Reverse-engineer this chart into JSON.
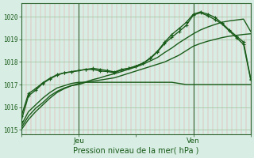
{
  "xlabel": "Pression niveau de la mer( hPa )",
  "bg_color": "#d8ede4",
  "fig_color": "#d8ede4",
  "grid_v_color": "#e8a0a0",
  "grid_h_color": "#a8c8a8",
  "line_color": "#1a5c1a",
  "ylim": [
    1014.8,
    1020.6
  ],
  "xlim": [
    0,
    96
  ],
  "xtick_labels": [
    "",
    "Jeu",
    "",
    "Ven",
    ""
  ],
  "xtick_positions": [
    0,
    24,
    48,
    72,
    96
  ],
  "ytick_positions": [
    1015,
    1016,
    1017,
    1018,
    1019,
    1020
  ],
  "vline_positions": [
    24,
    72
  ],
  "vline_color": "#336633",
  "series": [
    {
      "x": [
        0,
        3,
        6,
        9,
        12,
        15,
        18,
        21,
        24,
        27,
        30,
        33,
        36,
        39,
        42,
        45,
        48,
        51,
        54,
        57,
        60,
        63,
        66,
        69,
        72,
        75,
        78,
        81,
        84,
        87,
        90,
        93,
        96
      ],
      "y": [
        1015.2,
        1015.8,
        1016.1,
        1016.4,
        1016.65,
        1016.85,
        1016.95,
        1017.05,
        1017.1,
        1017.1,
        1017.1,
        1017.1,
        1017.1,
        1017.1,
        1017.1,
        1017.1,
        1017.1,
        1017.1,
        1017.1,
        1017.1,
        1017.1,
        1017.1,
        1017.05,
        1017.0,
        1017.0,
        1017.0,
        1017.0,
        1017.0,
        1017.0,
        1017.0,
        1017.0,
        1017.0,
        1017.0
      ],
      "marker": null,
      "linewidth": 1.0,
      "color": "#1a5c1a"
    },
    {
      "x": [
        0,
        3,
        6,
        9,
        12,
        15,
        18,
        21,
        24,
        27,
        30,
        33,
        36,
        39,
        42,
        45,
        48,
        51,
        54,
        57,
        60,
        63,
        66,
        69,
        72,
        75,
        78,
        81,
        84,
        87,
        90,
        93,
        96
      ],
      "y": [
        1015.1,
        1015.6,
        1015.95,
        1016.2,
        1016.5,
        1016.7,
        1016.85,
        1016.95,
        1017.0,
        1017.1,
        1017.15,
        1017.2,
        1017.25,
        1017.3,
        1017.4,
        1017.5,
        1017.6,
        1017.7,
        1017.8,
        1017.9,
        1018.0,
        1018.15,
        1018.3,
        1018.5,
        1018.7,
        1018.82,
        1018.92,
        1019.0,
        1019.08,
        1019.14,
        1019.18,
        1019.22,
        1019.25
      ],
      "marker": null,
      "linewidth": 1.0,
      "color": "#1a5c1a"
    },
    {
      "x": [
        0,
        3,
        6,
        9,
        12,
        15,
        18,
        21,
        24,
        27,
        30,
        33,
        36,
        39,
        42,
        45,
        48,
        51,
        54,
        57,
        60,
        63,
        66,
        69,
        72,
        75,
        78,
        81,
        84,
        87,
        90,
        93,
        96
      ],
      "y": [
        1015.0,
        1015.45,
        1015.8,
        1016.1,
        1016.4,
        1016.65,
        1016.82,
        1016.95,
        1017.05,
        1017.12,
        1017.22,
        1017.3,
        1017.4,
        1017.48,
        1017.58,
        1017.68,
        1017.78,
        1017.9,
        1018.05,
        1018.2,
        1018.42,
        1018.62,
        1018.85,
        1019.05,
        1019.25,
        1019.42,
        1019.55,
        1019.66,
        1019.76,
        1019.82,
        1019.86,
        1019.9,
        1019.35
      ],
      "marker": null,
      "linewidth": 1.0,
      "color": "#1a5c1a"
    },
    {
      "x": [
        0,
        3,
        6,
        9,
        12,
        15,
        18,
        21,
        24,
        27,
        30,
        33,
        36,
        39,
        42,
        45,
        48,
        51,
        54,
        57,
        60,
        63,
        66,
        69,
        72,
        75,
        78,
        81,
        84,
        87,
        90,
        93,
        96
      ],
      "y": [
        1015.4,
        1016.5,
        1016.75,
        1017.05,
        1017.25,
        1017.42,
        1017.52,
        1017.57,
        1017.62,
        1017.67,
        1017.67,
        1017.6,
        1017.58,
        1017.52,
        1017.65,
        1017.72,
        1017.82,
        1017.95,
        1018.18,
        1018.48,
        1018.88,
        1019.22,
        1019.48,
        1019.75,
        1020.12,
        1020.22,
        1020.12,
        1019.98,
        1019.72,
        1019.42,
        1019.15,
        1018.88,
        1017.25
      ],
      "marker": "+",
      "linewidth": 1.0,
      "color": "#1a5c1a",
      "markersize": 3
    },
    {
      "x": [
        0,
        3,
        6,
        9,
        12,
        15,
        18,
        21,
        24,
        27,
        30,
        33,
        36,
        39,
        42,
        45,
        48,
        51,
        54,
        57,
        60,
        63,
        66,
        69,
        72,
        75,
        78,
        81,
        84,
        87,
        90,
        93,
        96
      ],
      "y": [
        1015.6,
        1016.6,
        1016.82,
        1017.08,
        1017.28,
        1017.44,
        1017.52,
        1017.56,
        1017.62,
        1017.67,
        1017.72,
        1017.67,
        1017.62,
        1017.56,
        1017.67,
        1017.72,
        1017.82,
        1017.95,
        1018.15,
        1018.45,
        1018.82,
        1019.1,
        1019.35,
        1019.62,
        1020.08,
        1020.18,
        1020.05,
        1019.88,
        1019.68,
        1019.38,
        1019.08,
        1018.78,
        1017.22
      ],
      "marker": "+",
      "linewidth": 1.0,
      "color": "#1a5c1a",
      "markersize": 3
    }
  ]
}
